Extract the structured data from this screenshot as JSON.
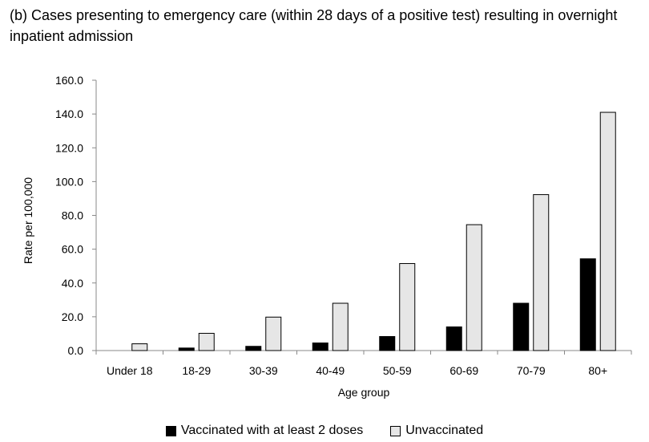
{
  "chart_data": {
    "type": "bar",
    "title": "(b) Cases presenting to emergency care (within 28 days of a positive test) resulting in overnight inpatient admission",
    "xlabel": "Age group",
    "ylabel": "Rate per 100,000",
    "ylim": [
      0,
      160
    ],
    "yticks": [
      "0.0",
      "20.0",
      "40.0",
      "60.0",
      "80.0",
      "100.0",
      "120.0",
      "140.0",
      "160.0"
    ],
    "categories": [
      "Under 18",
      "18-29",
      "30-39",
      "40-49",
      "50-59",
      "60-69",
      "70-79",
      "80+"
    ],
    "series": [
      {
        "name": "Vaccinated with at least 2 doses",
        "color": "#000000",
        "values": [
          0.0,
          1.5,
          2.5,
          4.5,
          8.3,
          14.0,
          28.0,
          54.3
        ]
      },
      {
        "name": "Unvaccinated",
        "color": "#e6e6e6",
        "values": [
          4.0,
          10.2,
          19.8,
          28.0,
          51.5,
          74.5,
          92.3,
          141.0
        ]
      }
    ],
    "legend_position": "bottom",
    "grid": false
  }
}
